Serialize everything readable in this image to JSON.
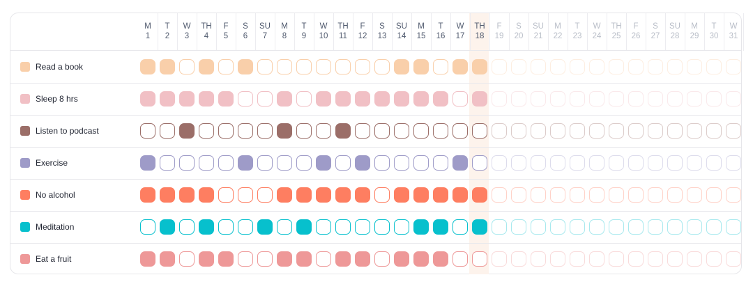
{
  "days": [
    {
      "letter": "M",
      "num": "1"
    },
    {
      "letter": "T",
      "num": "2"
    },
    {
      "letter": "W",
      "num": "3"
    },
    {
      "letter": "TH",
      "num": "4"
    },
    {
      "letter": "F",
      "num": "5"
    },
    {
      "letter": "S",
      "num": "6"
    },
    {
      "letter": "SU",
      "num": "7"
    },
    {
      "letter": "M",
      "num": "8"
    },
    {
      "letter": "T",
      "num": "9"
    },
    {
      "letter": "W",
      "num": "10"
    },
    {
      "letter": "TH",
      "num": "11"
    },
    {
      "letter": "F",
      "num": "12"
    },
    {
      "letter": "S",
      "num": "13"
    },
    {
      "letter": "SU",
      "num": "14"
    },
    {
      "letter": "M",
      "num": "15"
    },
    {
      "letter": "T",
      "num": "16"
    },
    {
      "letter": "W",
      "num": "17"
    },
    {
      "letter": "TH",
      "num": "18"
    },
    {
      "letter": "F",
      "num": "19"
    },
    {
      "letter": "S",
      "num": "20"
    },
    {
      "letter": "SU",
      "num": "21"
    },
    {
      "letter": "M",
      "num": "22"
    },
    {
      "letter": "T",
      "num": "23"
    },
    {
      "letter": "W",
      "num": "24"
    },
    {
      "letter": "TH",
      "num": "25"
    },
    {
      "letter": "F",
      "num": "26"
    },
    {
      "letter": "S",
      "num": "27"
    },
    {
      "letter": "SU",
      "num": "28"
    },
    {
      "letter": "M",
      "num": "29"
    },
    {
      "letter": "T",
      "num": "30"
    },
    {
      "letter": "W",
      "num": "31"
    }
  ],
  "today": "18",
  "habits": [
    {
      "name": "Read a book",
      "color": "#f9cfaa",
      "done": [
        1,
        1,
        0,
        1,
        0,
        1,
        0,
        0,
        0,
        0,
        0,
        0,
        0,
        1,
        1,
        0,
        1,
        1
      ]
    },
    {
      "name": "Sleep 8 hrs",
      "color": "#f1c0c5",
      "done": [
        1,
        1,
        1,
        1,
        1,
        0,
        0,
        1,
        0,
        1,
        1,
        1,
        1,
        1,
        1,
        1,
        0,
        1
      ]
    },
    {
      "name": "Listen to podcast",
      "color": "#9b6e68",
      "done": [
        0,
        0,
        1,
        0,
        0,
        0,
        0,
        1,
        0,
        0,
        1,
        0,
        0,
        0,
        0,
        0,
        0,
        0
      ]
    },
    {
      "name": "Exercise",
      "color": "#9e9bc8",
      "done": [
        1,
        0,
        0,
        0,
        0,
        1,
        0,
        0,
        0,
        1,
        0,
        1,
        0,
        0,
        0,
        0,
        1,
        0
      ]
    },
    {
      "name": "No alcohol",
      "color": "#fe7e61",
      "done": [
        1,
        1,
        1,
        1,
        0,
        0,
        0,
        1,
        1,
        1,
        1,
        1,
        0,
        1,
        1,
        1,
        1,
        1
      ]
    },
    {
      "name": "Meditation",
      "color": "#07c0cd",
      "done": [
        0,
        1,
        0,
        1,
        0,
        0,
        1,
        0,
        1,
        0,
        0,
        0,
        0,
        0,
        1,
        1,
        0,
        1
      ]
    },
    {
      "name": "Eat a fruit",
      "color": "#ee9898",
      "done": [
        1,
        1,
        0,
        1,
        1,
        0,
        0,
        1,
        1,
        0,
        1,
        1,
        0,
        1,
        1,
        1,
        0,
        0
      ]
    }
  ]
}
